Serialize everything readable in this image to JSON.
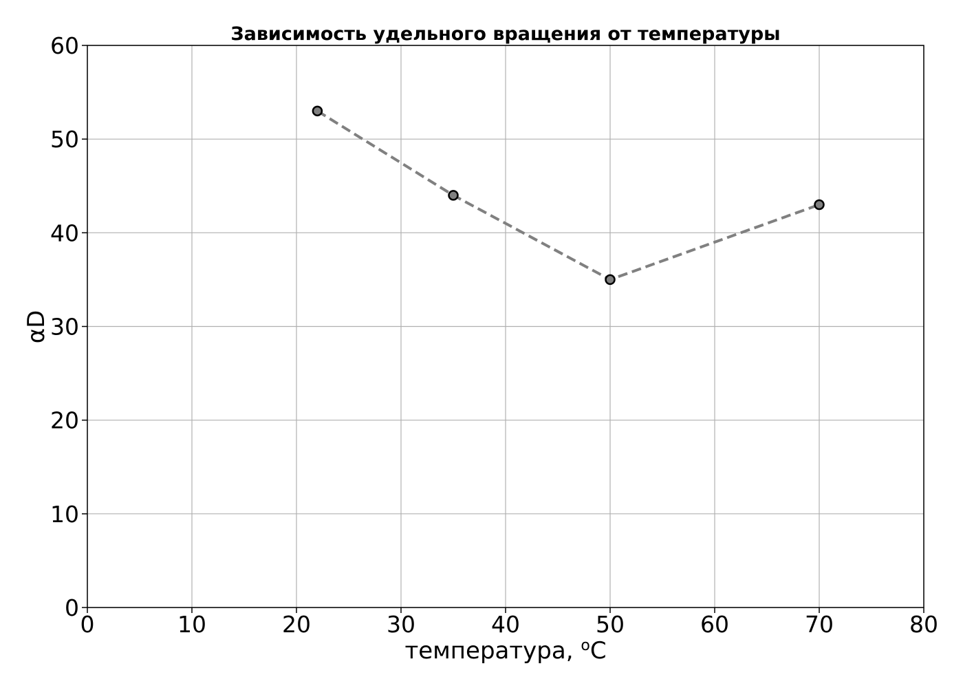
{
  "chart_data": {
    "type": "line",
    "title": "Зависимость удельного вращения от температуры",
    "xlabel": "температура, ",
    "xlabel_sup": "o",
    "xlabel_suffix": "C",
    "ylabel": "αD",
    "xlim": [
      0,
      80
    ],
    "ylim": [
      0,
      60
    ],
    "xticks": [
      0,
      10,
      20,
      30,
      40,
      50,
      60,
      70,
      80
    ],
    "yticks": [
      0,
      10,
      20,
      30,
      40,
      50,
      60
    ],
    "grid": true,
    "series": [
      {
        "x": [
          22,
          35,
          50,
          70
        ],
        "y": [
          53,
          44,
          35,
          43
        ],
        "line_style": "dashed",
        "line_color": "#808080",
        "marker": "circle",
        "marker_fill": "#808080",
        "marker_edge": "#000000"
      }
    ]
  }
}
